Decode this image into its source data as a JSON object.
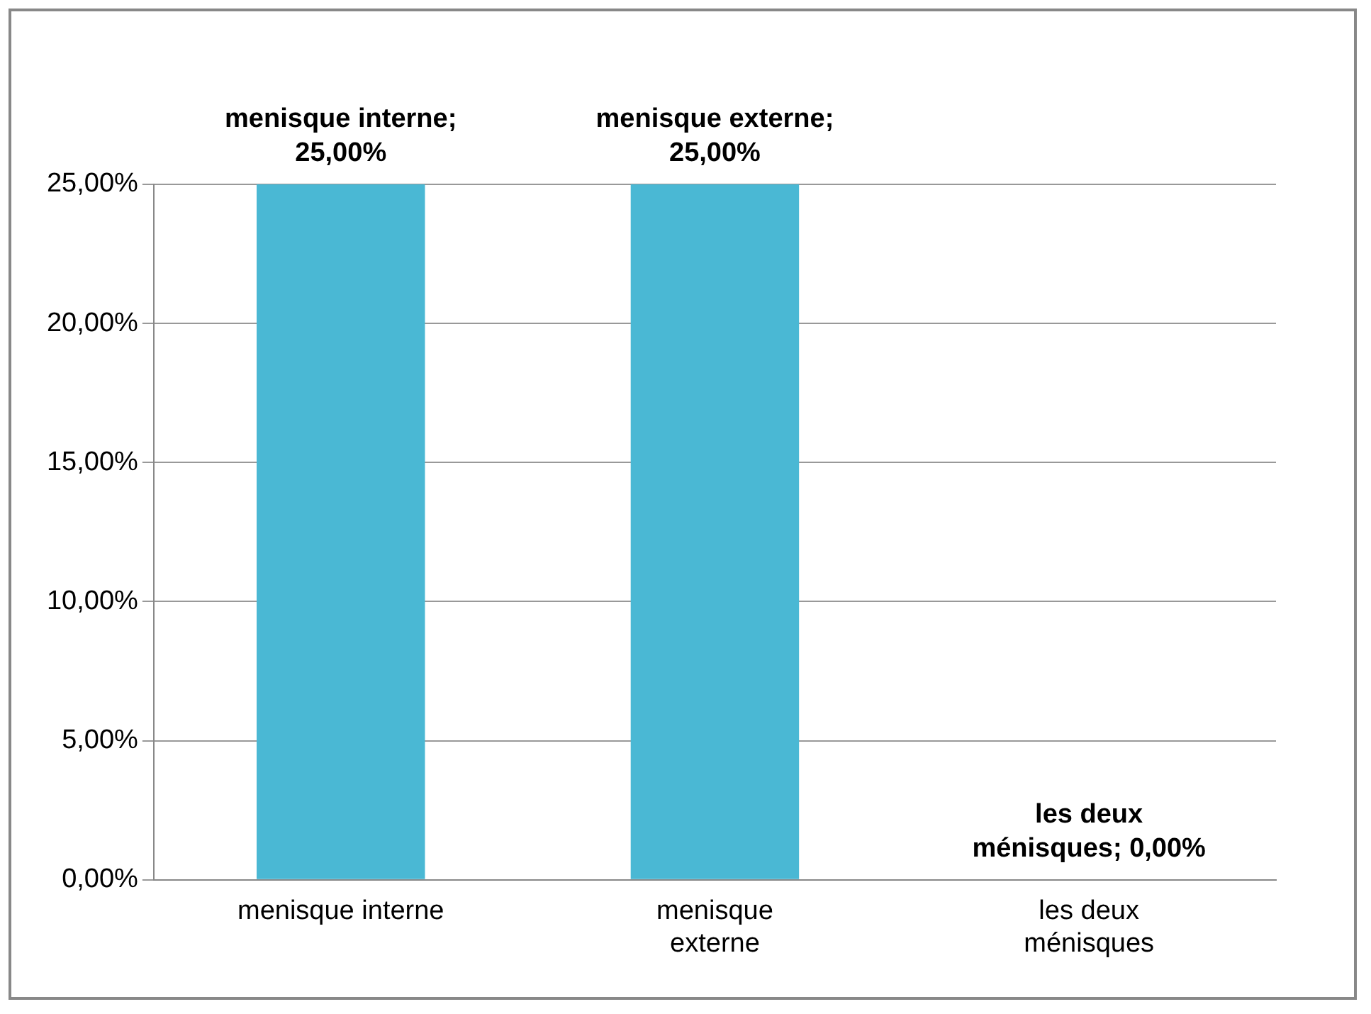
{
  "chart_data": {
    "type": "bar",
    "categories": [
      "menisque interne",
      "menisque externe",
      "les deux ménisques"
    ],
    "values": [
      25,
      25,
      0
    ],
    "value_labels": [
      "menisque interne; 25,00%",
      "menisque externe; 25,00%",
      "les deux ménisques; 0,00%"
    ],
    "color": "#4ab8d4",
    "ylim": [
      0,
      25
    ],
    "yticks": [
      {
        "value": 0,
        "label": "0,00%"
      },
      {
        "value": 5,
        "label": "5,00%"
      },
      {
        "value": 10,
        "label": "10,00%"
      },
      {
        "value": 15,
        "label": "15,00%"
      },
      {
        "value": 20,
        "label": "20,00%"
      },
      {
        "value": 25,
        "label": "25,00%"
      }
    ],
    "grid": "y",
    "legend": false
  }
}
